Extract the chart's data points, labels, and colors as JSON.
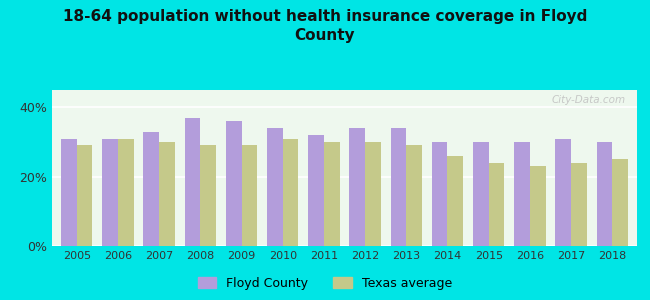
{
  "title": "18-64 population without health insurance coverage in Floyd\nCounty",
  "years": [
    2005,
    2006,
    2007,
    2008,
    2009,
    2010,
    2011,
    2012,
    2013,
    2014,
    2015,
    2016,
    2017,
    2018
  ],
  "floyd_county": [
    31,
    31,
    33,
    37,
    36,
    34,
    32,
    34,
    34,
    30,
    30,
    30,
    31,
    30
  ],
  "texas_average": [
    29,
    31,
    30,
    29,
    29,
    31,
    30,
    30,
    29,
    26,
    24,
    23,
    24,
    25
  ],
  "floyd_color": "#b39ddb",
  "texas_color": "#c5c98a",
  "background_color": "#00e5e5",
  "plot_bg_color": "#eef8ee",
  "ylim": [
    0,
    45
  ],
  "yticks": [
    0,
    20,
    40
  ],
  "ytick_labels": [
    "0%",
    "20%",
    "40%"
  ],
  "legend_floyd": "Floyd County",
  "legend_texas": "Texas average",
  "watermark": "City-Data.com",
  "bar_width": 0.38
}
